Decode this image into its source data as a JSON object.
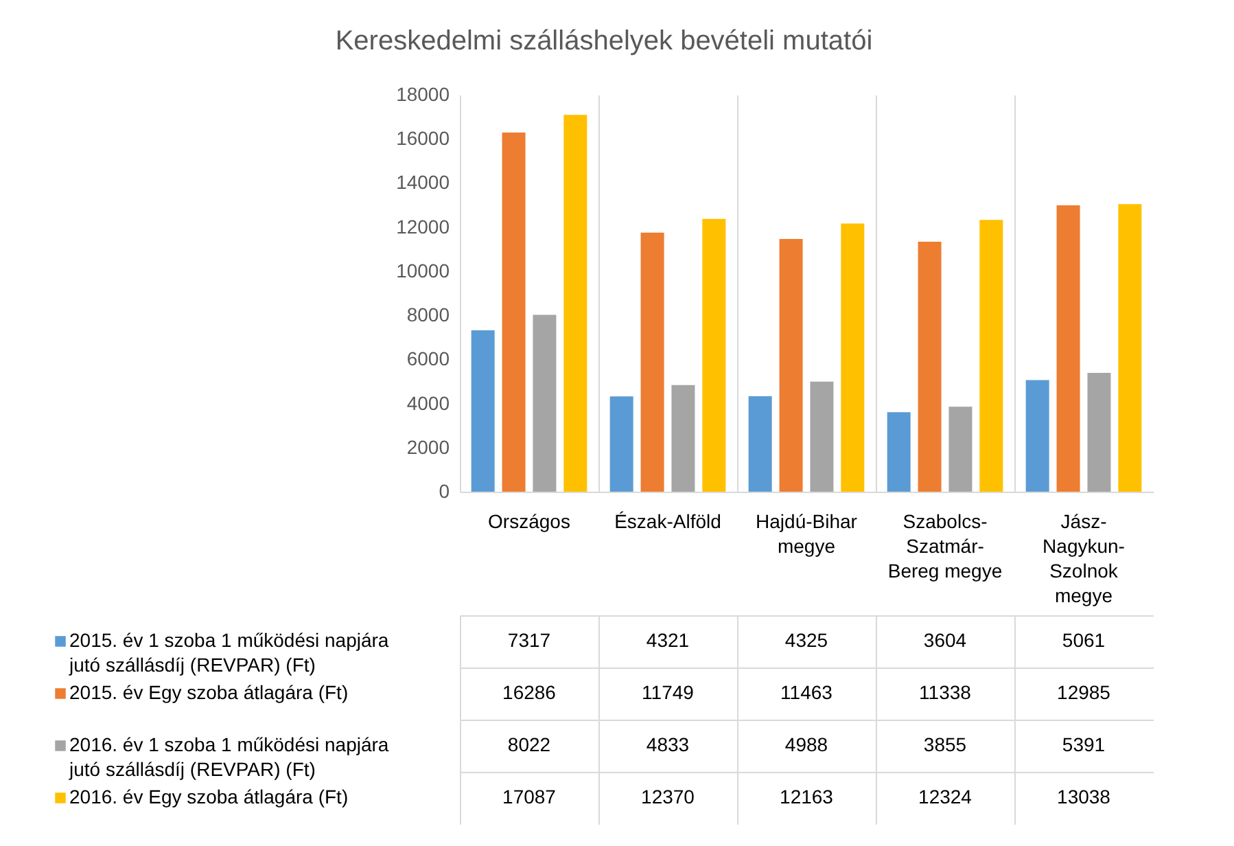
{
  "chart_data": {
    "type": "bar",
    "title": "Kereskedelmi szálláshelyek bevételi mutatói",
    "categories": [
      "Országos",
      "Észak-Alföld",
      "Hajdú-Bihar megye",
      "Szabolcs-Szatmár-Bereg megye",
      "Jász-Nagykun-Szolnok megye"
    ],
    "series": [
      {
        "name": "2015. év 1 szoba 1 működési napjára jutó szállásdíj (REVPAR) (Ft)",
        "color": "#5b9bd5",
        "values": [
          7317,
          4321,
          4325,
          3604,
          5061
        ]
      },
      {
        "name": "2015. év Egy szoba átlagára (Ft)",
        "color": "#ed7d31",
        "values": [
          16286,
          11749,
          11463,
          11338,
          12985
        ]
      },
      {
        "name": "2016. év 1 szoba 1 működési napjára jutó szállásdíj (REVPAR) (Ft)",
        "color": "#a5a5a5",
        "values": [
          8022,
          4833,
          4988,
          3855,
          5391
        ]
      },
      {
        "name": "2016. év Egy szoba átlagára (Ft)",
        "color": "#ffc000",
        "values": [
          17087,
          12370,
          12163,
          12324,
          13038
        ]
      }
    ],
    "ylim": [
      0,
      18000
    ],
    "yticks": [
      0,
      2000,
      4000,
      6000,
      8000,
      10000,
      12000,
      14000,
      16000,
      18000
    ],
    "data_labels": true,
    "legend": "bottom"
  }
}
